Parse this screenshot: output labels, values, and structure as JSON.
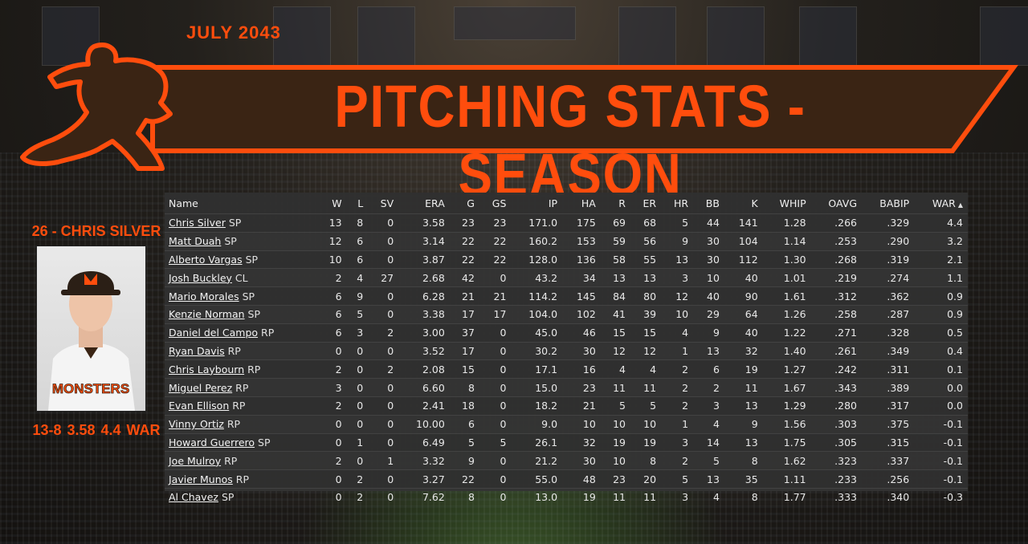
{
  "date": "JULY 2043",
  "title": "PITCHING STATS - SEASON",
  "featured": {
    "name": "26 - CHRIS SILVER",
    "summary": "13-8  3.58  4.4 WAR",
    "jersey": "MONSTERS"
  },
  "colors": {
    "accent": "#ff4d0d",
    "banner_bg": "#3a2414",
    "panel_bg": "#303030"
  },
  "columns": [
    "Name",
    "W",
    "L",
    "SV",
    "ERA",
    "G",
    "GS",
    "IP",
    "HA",
    "R",
    "ER",
    "HR",
    "BB",
    "K",
    "WHIP",
    "OAVG",
    "BABIP",
    "WAR"
  ],
  "sort": {
    "column": "WAR",
    "icon": "sort-asc-icon",
    "glyph": "▲"
  },
  "rows": [
    {
      "name": "Chris Silver",
      "pos": "SP",
      "stats": [
        "13",
        "8",
        "0",
        "3.58",
        "23",
        "23",
        "171.0",
        "175",
        "69",
        "68",
        "5",
        "44",
        "141",
        "1.28",
        ".266",
        ".329",
        "4.4"
      ]
    },
    {
      "name": "Matt Duah",
      "pos": "SP",
      "stats": [
        "12",
        "6",
        "0",
        "3.14",
        "22",
        "22",
        "160.2",
        "153",
        "59",
        "56",
        "9",
        "30",
        "104",
        "1.14",
        ".253",
        ".290",
        "3.2"
      ]
    },
    {
      "name": "Alberto Vargas",
      "pos": "SP",
      "stats": [
        "10",
        "6",
        "0",
        "3.87",
        "22",
        "22",
        "128.0",
        "136",
        "58",
        "55",
        "13",
        "30",
        "112",
        "1.30",
        ".268",
        ".319",
        "2.1"
      ]
    },
    {
      "name": "Josh Buckley",
      "pos": "CL",
      "stats": [
        "2",
        "4",
        "27",
        "2.68",
        "42",
        "0",
        "43.2",
        "34",
        "13",
        "13",
        "3",
        "10",
        "40",
        "1.01",
        ".219",
        ".274",
        "1.1"
      ]
    },
    {
      "name": "Mario Morales",
      "pos": "SP",
      "stats": [
        "6",
        "9",
        "0",
        "6.28",
        "21",
        "21",
        "114.2",
        "145",
        "84",
        "80",
        "12",
        "40",
        "90",
        "1.61",
        ".312",
        ".362",
        "0.9"
      ]
    },
    {
      "name": "Kenzie Norman",
      "pos": "SP",
      "stats": [
        "6",
        "5",
        "0",
        "3.38",
        "17",
        "17",
        "104.0",
        "102",
        "41",
        "39",
        "10",
        "29",
        "64",
        "1.26",
        ".258",
        ".287",
        "0.9"
      ]
    },
    {
      "name": "Daniel del Campo",
      "pos": "RP",
      "stats": [
        "6",
        "3",
        "2",
        "3.00",
        "37",
        "0",
        "45.0",
        "46",
        "15",
        "15",
        "4",
        "9",
        "40",
        "1.22",
        ".271",
        ".328",
        "0.5"
      ]
    },
    {
      "name": "Ryan Davis",
      "pos": "RP",
      "stats": [
        "0",
        "0",
        "0",
        "3.52",
        "17",
        "0",
        "30.2",
        "30",
        "12",
        "12",
        "1",
        "13",
        "32",
        "1.40",
        ".261",
        ".349",
        "0.4"
      ]
    },
    {
      "name": "Chris Laybourn",
      "pos": "RP",
      "stats": [
        "2",
        "0",
        "2",
        "2.08",
        "15",
        "0",
        "17.1",
        "16",
        "4",
        "4",
        "2",
        "6",
        "19",
        "1.27",
        ".242",
        ".311",
        "0.1"
      ]
    },
    {
      "name": "Miguel Perez",
      "pos": "RP",
      "stats": [
        "3",
        "0",
        "0",
        "6.60",
        "8",
        "0",
        "15.0",
        "23",
        "11",
        "11",
        "2",
        "2",
        "11",
        "1.67",
        ".343",
        ".389",
        "0.0"
      ]
    },
    {
      "name": "Evan Ellison",
      "pos": "RP",
      "stats": [
        "2",
        "0",
        "0",
        "2.41",
        "18",
        "0",
        "18.2",
        "21",
        "5",
        "5",
        "2",
        "3",
        "13",
        "1.29",
        ".280",
        ".317",
        "0.0"
      ]
    },
    {
      "name": "Vinny Ortiz",
      "pos": "RP",
      "stats": [
        "0",
        "0",
        "0",
        "10.00",
        "6",
        "0",
        "9.0",
        "10",
        "10",
        "10",
        "1",
        "4",
        "9",
        "1.56",
        ".303",
        ".375",
        "-0.1"
      ]
    },
    {
      "name": "Howard Guerrero",
      "pos": "SP",
      "stats": [
        "0",
        "1",
        "0",
        "6.49",
        "5",
        "5",
        "26.1",
        "32",
        "19",
        "19",
        "3",
        "14",
        "13",
        "1.75",
        ".305",
        ".315",
        "-0.1"
      ]
    },
    {
      "name": "Joe Mulroy",
      "pos": "RP",
      "stats": [
        "2",
        "0",
        "1",
        "3.32",
        "9",
        "0",
        "21.2",
        "30",
        "10",
        "8",
        "2",
        "5",
        "8",
        "1.62",
        ".323",
        ".337",
        "-0.1"
      ]
    },
    {
      "name": "Javier Munos",
      "pos": "RP",
      "stats": [
        "0",
        "2",
        "0",
        "3.27",
        "22",
        "0",
        "55.0",
        "48",
        "23",
        "20",
        "5",
        "13",
        "35",
        "1.11",
        ".233",
        ".256",
        "-0.1"
      ]
    },
    {
      "name": "Al Chavez",
      "pos": "SP",
      "stats": [
        "0",
        "2",
        "0",
        "7.62",
        "8",
        "0",
        "13.0",
        "19",
        "11",
        "11",
        "3",
        "4",
        "8",
        "1.77",
        ".333",
        ".340",
        "-0.3"
      ]
    }
  ]
}
